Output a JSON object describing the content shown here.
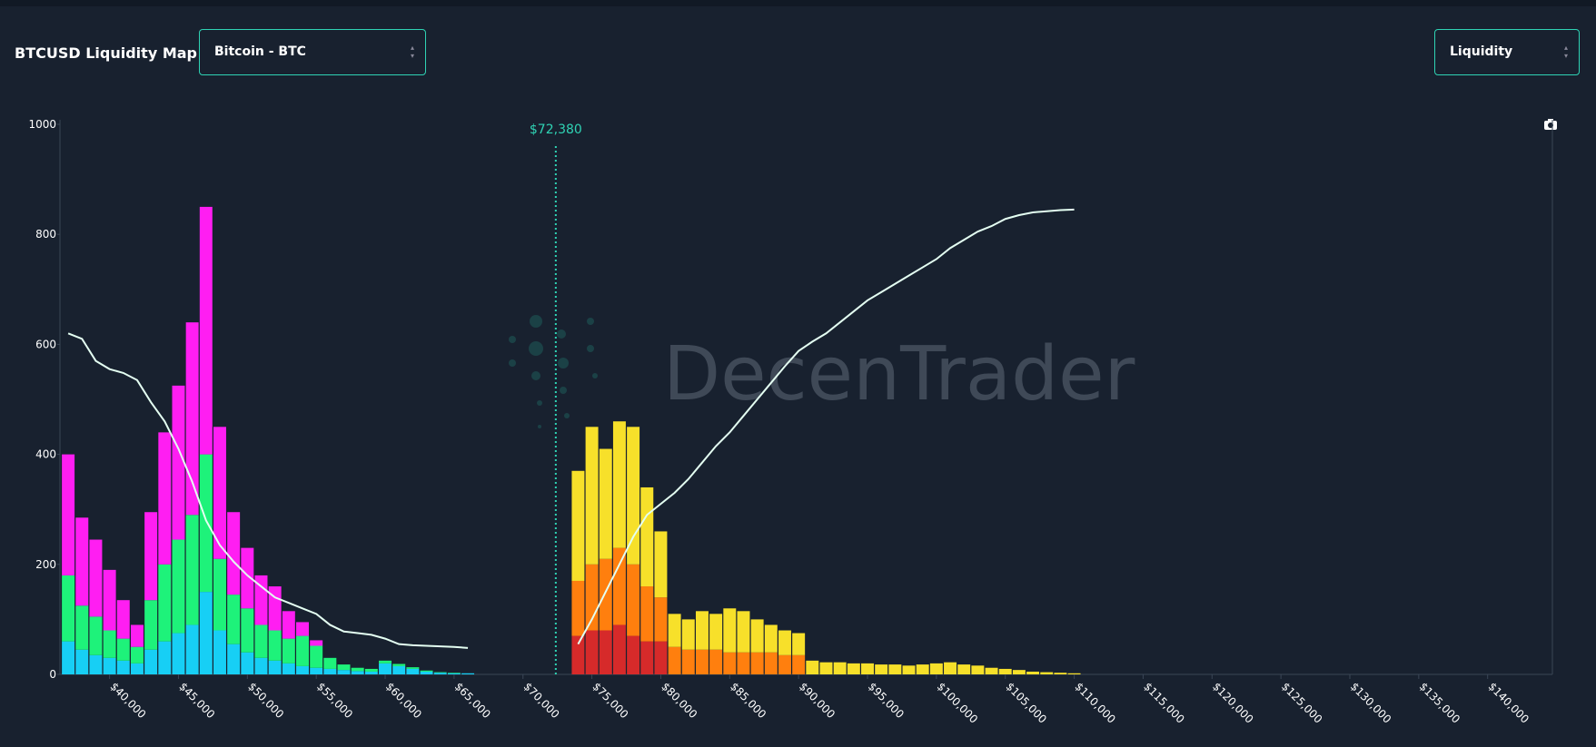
{
  "header": {
    "title": "BTCUSD Liquidity Map",
    "asset_select": "Bitcoin - BTC",
    "mode_select": "Liquidity"
  },
  "chart_data": {
    "type": "bar",
    "watermark": "DecenTrader",
    "annotation": {
      "value": 72380,
      "label": "$72,380",
      "color": "#2fd3b4"
    },
    "xlim": [
      36400,
      144700
    ],
    "ylim": [
      0,
      1000
    ],
    "yticks": [
      0,
      200,
      400,
      600,
      800,
      1000
    ],
    "xticks": [
      {
        "value": 40000,
        "label": "$40,000"
      },
      {
        "value": 45000,
        "label": "$45,000"
      },
      {
        "value": 50000,
        "label": "$50,000"
      },
      {
        "value": 55000,
        "label": "$55,000"
      },
      {
        "value": 60000,
        "label": "$60,000"
      },
      {
        "value": 65000,
        "label": "$65,000"
      },
      {
        "value": 70000,
        "label": "$70,000"
      },
      {
        "value": 75000,
        "label": "$75,000"
      },
      {
        "value": 80000,
        "label": "$80,000"
      },
      {
        "value": 85000,
        "label": "$85,000"
      },
      {
        "value": 90000,
        "label": "$90,000"
      },
      {
        "value": 95000,
        "label": "$95,000"
      },
      {
        "value": 100000,
        "label": "$100,000"
      },
      {
        "value": 105000,
        "label": "$105,000"
      },
      {
        "value": 110000,
        "label": "$110,000"
      },
      {
        "value": 115000,
        "label": "$115,000"
      },
      {
        "value": 120000,
        "label": "$120,000"
      },
      {
        "value": 125000,
        "label": "$125,000"
      },
      {
        "value": 130000,
        "label": "$130,000"
      },
      {
        "value": 135000,
        "label": "$135,000"
      },
      {
        "value": 140000,
        "label": "$140,000"
      }
    ],
    "x": [
      37000,
      38000,
      39000,
      40000,
      41000,
      42000,
      43000,
      44000,
      45000,
      46000,
      47000,
      48000,
      49000,
      50000,
      51000,
      52000,
      53000,
      54000,
      55000,
      56000,
      57000,
      58000,
      59000,
      60000,
      61000,
      62000,
      63000,
      64000,
      65000,
      66000,
      74000,
      75000,
      76000,
      77000,
      78000,
      79000,
      80000,
      81000,
      82000,
      83000,
      84000,
      85000,
      86000,
      87000,
      88000,
      89000,
      90000,
      91000,
      92000,
      93000,
      94000,
      95000,
      96000,
      97000,
      98000,
      99000,
      100000,
      101000,
      102000,
      103000,
      104000,
      105000,
      106000,
      107000,
      108000,
      109000,
      110000
    ],
    "series": [
      {
        "type": "bar",
        "color": "#17cff5",
        "values": [
          60,
          45,
          35,
          30,
          25,
          20,
          45,
          60,
          75,
          90,
          150,
          80,
          55,
          40,
          30,
          25,
          20,
          15,
          12,
          10,
          8,
          6,
          5,
          20,
          15,
          10,
          5,
          3,
          2,
          2,
          null,
          null,
          null,
          null,
          null,
          null,
          null,
          null,
          null,
          null,
          null,
          null,
          null,
          null,
          null,
          null,
          null,
          null,
          null,
          null,
          null,
          null,
          null,
          null,
          null,
          null,
          null,
          null,
          null,
          null,
          null,
          null,
          null,
          null,
          null,
          null,
          null
        ]
      },
      {
        "type": "bar",
        "color": "#1ef27a",
        "values": [
          120,
          80,
          70,
          50,
          40,
          30,
          90,
          140,
          170,
          200,
          250,
          130,
          90,
          80,
          60,
          55,
          45,
          55,
          40,
          20,
          10,
          6,
          5,
          5,
          4,
          3,
          2,
          1,
          1,
          0,
          null,
          null,
          null,
          null,
          null,
          null,
          null,
          null,
          null,
          null,
          null,
          null,
          null,
          null,
          null,
          null,
          null,
          null,
          null,
          null,
          null,
          null,
          null,
          null,
          null,
          null,
          null,
          null,
          null,
          null,
          null,
          null,
          null,
          null,
          null,
          null,
          null
        ]
      },
      {
        "type": "bar",
        "color": "#ff1ef2",
        "values": [
          220,
          160,
          140,
          110,
          70,
          40,
          160,
          240,
          280,
          350,
          450,
          240,
          150,
          110,
          90,
          80,
          50,
          25,
          10,
          0,
          0,
          0,
          0,
          0,
          0,
          0,
          0,
          0,
          0,
          0,
          null,
          null,
          null,
          null,
          null,
          null,
          null,
          null,
          null,
          null,
          null,
          null,
          null,
          null,
          null,
          null,
          null,
          null,
          null,
          null,
          null,
          null,
          null,
          null,
          null,
          null,
          null,
          null,
          null,
          null,
          null,
          null,
          null,
          null,
          null,
          null,
          null
        ]
      },
      {
        "type": "bar",
        "color": "#d62a2a",
        "values": [
          null,
          null,
          null,
          null,
          null,
          null,
          null,
          null,
          null,
          null,
          null,
          null,
          null,
          null,
          null,
          null,
          null,
          null,
          null,
          null,
          null,
          null,
          null,
          null,
          null,
          null,
          null,
          null,
          null,
          null,
          70,
          80,
          80,
          90,
          70,
          60,
          60,
          null,
          null,
          null,
          null,
          null,
          null,
          null,
          null,
          null,
          null,
          null,
          null,
          null,
          null,
          null,
          null,
          null,
          null,
          null,
          null,
          null,
          null,
          null,
          null,
          null,
          null,
          null,
          null,
          null,
          null
        ]
      },
      {
        "type": "bar",
        "color": "#ff7f0e",
        "values": [
          null,
          null,
          null,
          null,
          null,
          null,
          null,
          null,
          null,
          null,
          null,
          null,
          null,
          null,
          null,
          null,
          null,
          null,
          null,
          null,
          null,
          null,
          null,
          null,
          null,
          null,
          null,
          null,
          null,
          null,
          100,
          120,
          130,
          140,
          130,
          100,
          80,
          50,
          45,
          45,
          45,
          40,
          40,
          40,
          40,
          35,
          35,
          null,
          null,
          null,
          null,
          null,
          null,
          null,
          null,
          null,
          null,
          null,
          null,
          null,
          null,
          null,
          null,
          null,
          null,
          null,
          null
        ]
      },
      {
        "type": "bar",
        "color": "#f7e02a",
        "values": [
          null,
          null,
          null,
          null,
          null,
          null,
          null,
          null,
          null,
          null,
          null,
          null,
          null,
          null,
          null,
          null,
          null,
          null,
          null,
          null,
          null,
          null,
          null,
          null,
          null,
          null,
          null,
          null,
          null,
          null,
          200,
          250,
          200,
          230,
          250,
          180,
          120,
          60,
          55,
          70,
          65,
          80,
          75,
          60,
          50,
          45,
          40,
          25,
          22,
          22,
          20,
          20,
          18,
          18,
          16,
          18,
          20,
          22,
          18,
          16,
          12,
          10,
          8,
          5,
          4,
          3,
          2
        ]
      },
      {
        "type": "line",
        "color": "#e4fff2",
        "values": [
          620,
          610,
          570,
          555,
          548,
          535,
          495,
          460,
          410,
          350,
          280,
          235,
          205,
          180,
          160,
          140,
          130,
          120,
          110,
          90,
          78,
          75,
          72,
          65,
          55,
          53,
          52,
          51,
          50,
          48,
          null,
          null,
          null,
          null,
          null,
          null,
          null,
          null,
          null,
          null,
          null,
          null,
          null,
          null,
          null,
          null,
          null,
          null,
          null,
          null,
          null,
          null,
          null,
          null,
          null,
          null,
          null,
          null,
          null,
          null,
          null,
          null,
          null,
          null,
          null,
          null,
          null
        ]
      },
      {
        "type": "line",
        "color": "#e4fff2",
        "values": [
          null,
          null,
          null,
          null,
          null,
          null,
          null,
          null,
          null,
          null,
          null,
          null,
          null,
          null,
          null,
          null,
          null,
          null,
          null,
          null,
          null,
          null,
          null,
          null,
          null,
          null,
          null,
          null,
          null,
          null,
          55,
          100,
          150,
          200,
          250,
          290,
          310,
          330,
          355,
          385,
          415,
          440,
          470,
          500,
          530,
          560,
          588,
          605,
          620,
          640,
          660,
          680,
          695,
          710,
          725,
          740,
          755,
          775,
          790,
          805,
          815,
          828,
          835,
          840,
          842,
          844,
          845
        ]
      }
    ]
  }
}
